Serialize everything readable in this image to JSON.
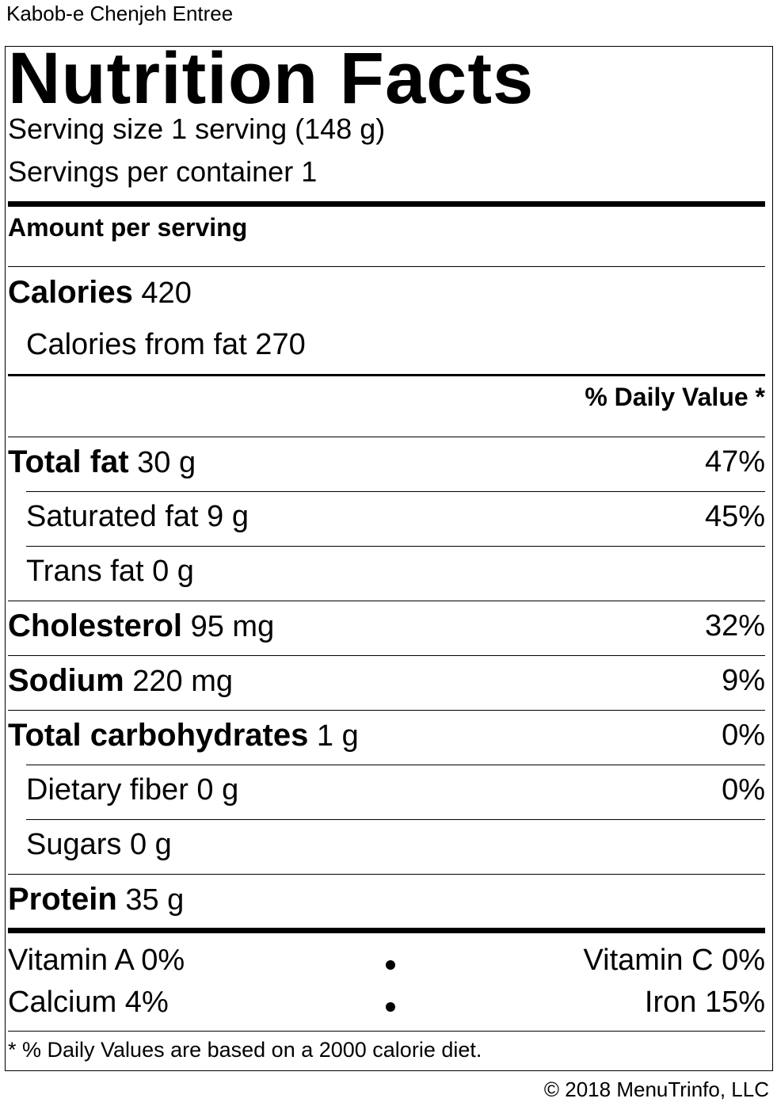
{
  "product_name": "Kabob-e Chenjeh Entree",
  "title": "Nutrition Facts",
  "serving_size": "Serving size 1 serving (148 g)",
  "servings_per_container": "Servings per container 1",
  "amount_per_serving": "Amount per serving",
  "calories": {
    "label": "Calories",
    "value": "420"
  },
  "calories_from_fat": "Calories from fat 270",
  "daily_value_header": "% Daily Value *",
  "nutrients": [
    {
      "label": "Total fat",
      "amount": "30 g",
      "dv": "47%"
    },
    {
      "label": "Saturated fat",
      "amount": "9 g",
      "dv": "45%"
    },
    {
      "label": "Trans fat",
      "amount": "0 g",
      "dv": ""
    },
    {
      "label": "Cholesterol",
      "amount": "95 mg",
      "dv": "32%"
    },
    {
      "label": "Sodium",
      "amount": "220 mg",
      "dv": "9%"
    },
    {
      "label": "Total carbohydrates",
      "amount": "1 g",
      "dv": "0%"
    },
    {
      "label": "Dietary fiber",
      "amount": "0 g",
      "dv": "0%"
    },
    {
      "label": "Sugars",
      "amount": "0 g",
      "dv": ""
    },
    {
      "label": "Protein",
      "amount": "35 g",
      "dv": ""
    }
  ],
  "vitamins": {
    "vitamin_a": "Vitamin A 0%",
    "vitamin_c": "Vitamin C 0%",
    "calcium": "Calcium 4%",
    "iron": "Iron 15%"
  },
  "footnote": "* % Daily Values are based on a 2000 calorie diet.",
  "copyright": "© 2018 MenuTrinfo, LLC"
}
